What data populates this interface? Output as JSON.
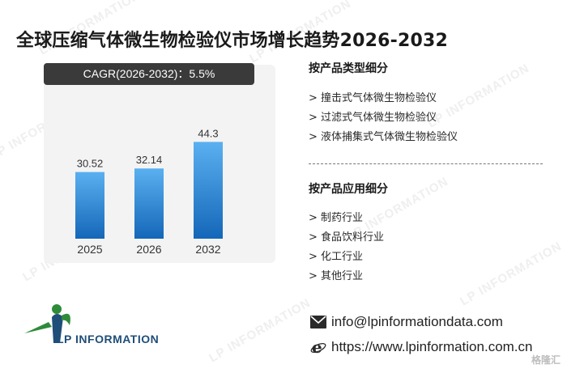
{
  "title": "全球压缩气体微生物检验仪市场增长趋势2026-2032",
  "cagr_label": "CAGR(2026-2032)：5.5%",
  "chart_data": {
    "type": "bar",
    "title": "",
    "xlabel": "",
    "ylabel": "",
    "categories": [
      "2025",
      "2026",
      "2032"
    ],
    "values": [
      30.52,
      32.14,
      44.3
    ],
    "value_labels": [
      "30.52",
      "32.14",
      "44.3"
    ],
    "ylim": [
      0,
      50
    ],
    "grid": false,
    "colors": {
      "bar_top": "#5ab0f0",
      "bar_bottom": "#1467b8"
    }
  },
  "product_type": {
    "heading": "按产品类型细分",
    "items": [
      "> 撞击式气体微生物检验仪",
      "> 过滤式气体微生物检验仪",
      "> 液体捕集式气体微生物检验仪"
    ]
  },
  "application": {
    "heading": "按产品应用细分",
    "items": [
      "> 制药行业",
      "> 食品饮料行业",
      "> 化工行业",
      "> 其他行业"
    ]
  },
  "contact": {
    "email": "info@lpinformationdata.com",
    "website": "https://www.lpinformation.com.cn",
    "email_icon": "envelope-icon",
    "web_icon": "browser-e-icon"
  },
  "logo": {
    "text": "LP INFORMATION"
  },
  "watermark": {
    "text": "LP INFORMATION",
    "corner": "格隆汇"
  },
  "colors": {
    "accent": "#1467b8",
    "logo_blue": "#1f4e79",
    "logo_green": "#2e8b3a"
  }
}
